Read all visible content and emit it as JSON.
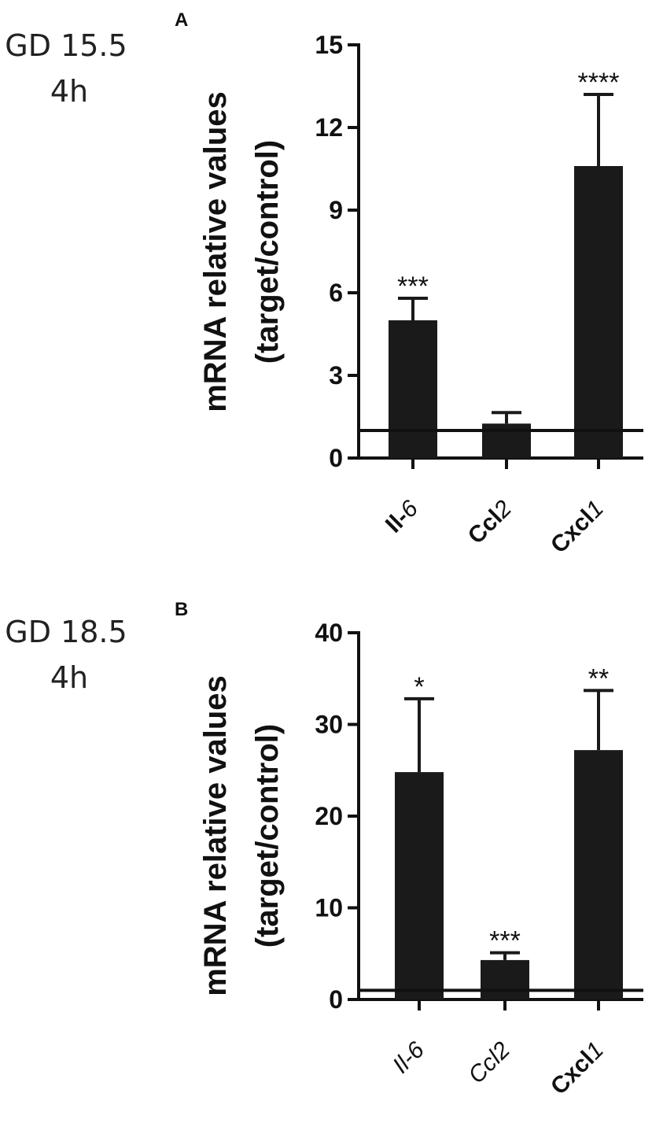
{
  "chart_data": [
    {
      "type": "bar",
      "panel": "A",
      "side_label": [
        "GD 15.5",
        "4h"
      ],
      "ylabel_lines": [
        "mRNA relative values",
        "(target/control)"
      ],
      "categories": [
        {
          "parts": [
            {
              "t": "Il-",
              "b": true,
              "i": false
            },
            {
              "t": "6",
              "b": false,
              "i": true
            }
          ]
        },
        {
          "parts": [
            {
              "t": "Ccl",
              "b": true,
              "i": false
            },
            {
              "t": "2",
              "b": false,
              "i": true
            }
          ]
        },
        {
          "parts": [
            {
              "t": "Cxcl",
              "b": true,
              "i": false
            },
            {
              "t": "1",
              "b": false,
              "i": true
            }
          ]
        }
      ],
      "category_names": [
        "Il-6",
        "Ccl2",
        "Cxcl1"
      ],
      "values": [
        5.0,
        1.25,
        10.6
      ],
      "errors": [
        0.8,
        0.4,
        2.6
      ],
      "significance": [
        "***",
        "",
        "****"
      ],
      "yticks": [
        0,
        3,
        6,
        9,
        12,
        15
      ],
      "ylim": [
        0,
        15
      ],
      "reference_line": 1
    },
    {
      "type": "bar",
      "panel": "B",
      "side_label": [
        "GD 18.5",
        "4h"
      ],
      "ylabel_lines": [
        "mRNA relative values",
        "(target/control)"
      ],
      "categories": [
        {
          "parts": [
            {
              "t": "Il-6",
              "b": false,
              "i": true
            }
          ]
        },
        {
          "parts": [
            {
              "t": "Ccl2",
              "b": false,
              "i": true
            }
          ]
        },
        {
          "parts": [
            {
              "t": "Cxcl",
              "b": true,
              "i": false
            },
            {
              "t": "1",
              "b": false,
              "i": true
            }
          ]
        }
      ],
      "category_names": [
        "Il-6",
        "Ccl2",
        "Cxcl1"
      ],
      "values": [
        24.8,
        4.3,
        27.2
      ],
      "errors": [
        8.0,
        0.8,
        6.5
      ],
      "significance": [
        "*",
        "***",
        "**"
      ],
      "yticks": [
        0,
        10,
        20,
        30,
        40
      ],
      "ylim": [
        0,
        40
      ],
      "reference_line": 1
    }
  ]
}
